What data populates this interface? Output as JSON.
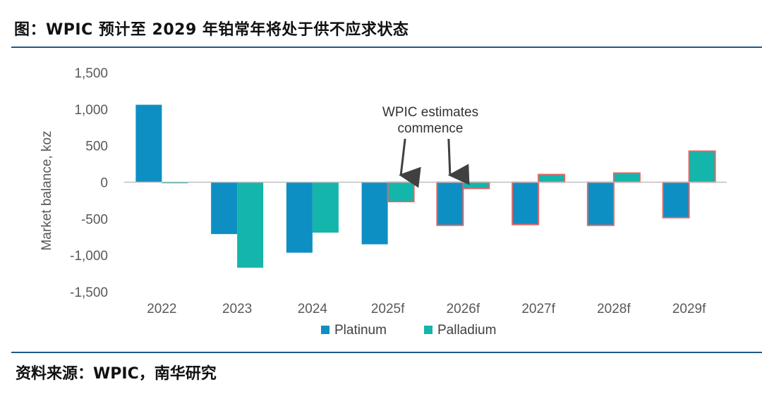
{
  "title": "图：WPIC 预计至 2029 年铂常年将处于供不应求状态",
  "source": "资料来源：WPIC，南华研究",
  "colors": {
    "platinum": "#0E8FC4",
    "palladium": "#14B5AA",
    "estimate_outline": "#E06666",
    "rule": "#1F5A86",
    "zero_line": "#BFBFBF",
    "arrow": "#404040"
  },
  "chart_data": {
    "type": "bar",
    "ylabel": "Market balance, koz",
    "xlabel": "",
    "ylim": [
      -1500,
      1500
    ],
    "yticks": [
      1500,
      1000,
      500,
      0,
      -500,
      -1000,
      -1500
    ],
    "ytick_labels": [
      "1,500",
      "1,000",
      "500",
      "0",
      "-500",
      "-1,000",
      "-1,500"
    ],
    "categories": [
      "2022",
      "2023",
      "2024",
      "2025f",
      "2026f",
      "2027f",
      "2028f",
      "2029f"
    ],
    "series": [
      {
        "name": "Platinum",
        "values": [
          1060,
          -710,
          -965,
          -850,
          -590,
          -580,
          -590,
          -485
        ]
      },
      {
        "name": "Palladium",
        "values": [
          -15,
          -1170,
          -690,
          -265,
          -85,
          105,
          125,
          425
        ]
      }
    ],
    "estimate_outlined": [
      [
        false,
        false,
        false,
        false,
        true,
        true,
        true,
        true
      ],
      [
        false,
        false,
        false,
        true,
        true,
        true,
        true,
        true
      ]
    ],
    "annotation": {
      "lines": [
        "WPIC estimates",
        "commence"
      ],
      "arrow_targets": [
        {
          "category": "2025f",
          "series": "Palladium"
        },
        {
          "category": "2026f",
          "series": "Platinum"
        }
      ]
    },
    "legend": [
      "Platinum",
      "Palladium"
    ],
    "legend_position": "bottom"
  }
}
